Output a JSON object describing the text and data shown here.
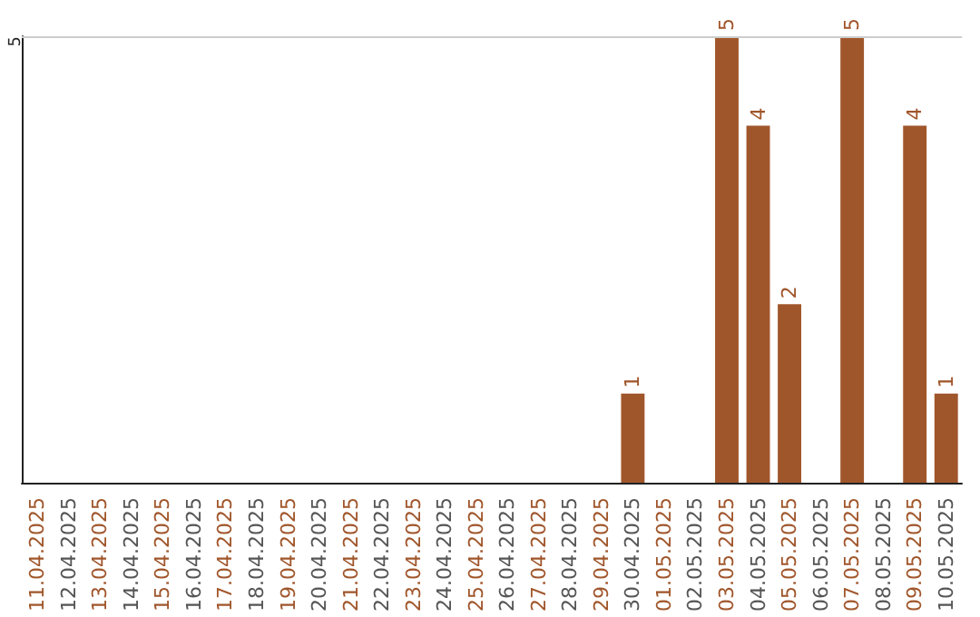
{
  "chart_data": {
    "type": "bar",
    "categories": [
      "11.04.2025",
      "12.04.2025",
      "13.04.2025",
      "14.04.2025",
      "15.04.2025",
      "16.04.2025",
      "17.04.2025",
      "18.04.2025",
      "19.04.2025",
      "20.04.2025",
      "21.04.2025",
      "22.04.2025",
      "23.04.2025",
      "24.04.2025",
      "25.04.2025",
      "26.04.2025",
      "27.04.2025",
      "28.04.2025",
      "29.04.2025",
      "30.04.2025",
      "01.05.2025",
      "02.05.2025",
      "03.05.2025",
      "04.05.2025",
      "05.05.2025",
      "06.05.2025",
      "07.05.2025",
      "08.05.2025",
      "09.05.2025",
      "10.05.2025"
    ],
    "values": [
      null,
      null,
      null,
      null,
      null,
      null,
      null,
      null,
      null,
      null,
      null,
      null,
      null,
      null,
      null,
      null,
      null,
      null,
      null,
      1,
      null,
      null,
      5,
      4,
      2,
      null,
      5,
      null,
      4,
      1
    ],
    "data_labels": true,
    "color": "#a0562b",
    "ylim": [
      0,
      5
    ],
    "ref_lines": [
      {
        "axis": "y",
        "value": 5,
        "label": "5",
        "color": "#cccccc"
      }
    ]
  }
}
